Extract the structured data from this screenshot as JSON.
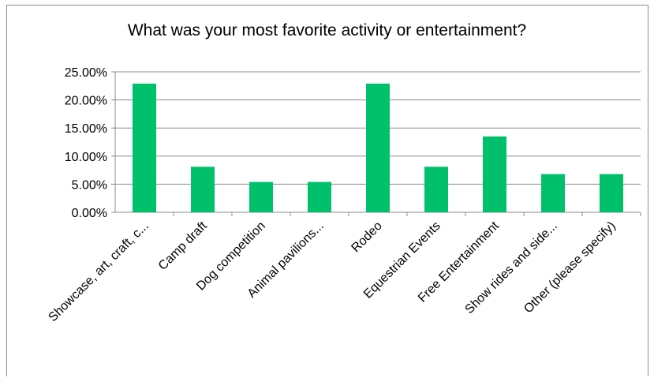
{
  "chart_data": {
    "type": "bar",
    "title": "What was your most favorite activity or entertainment?",
    "categories": [
      "Showcase, art, craft, c...",
      "Camp draft",
      "Dog competition",
      "Animal pavilions...",
      "Rodeo",
      "Equestrian Events",
      "Free Entertainment",
      "Show rides and side...",
      "Other (please specify)"
    ],
    "values": [
      0.229,
      0.081,
      0.054,
      0.054,
      0.229,
      0.081,
      0.135,
      0.068,
      0.068
    ],
    "ylim": [
      0,
      0.25
    ],
    "yticks": [
      "0.00%",
      "5.00%",
      "10.00%",
      "15.00%",
      "20.00%",
      "25.00%"
    ],
    "grid": true,
    "legend": "none",
    "bar_color": "#00c06b",
    "grid_color": "#8c8c8c"
  }
}
